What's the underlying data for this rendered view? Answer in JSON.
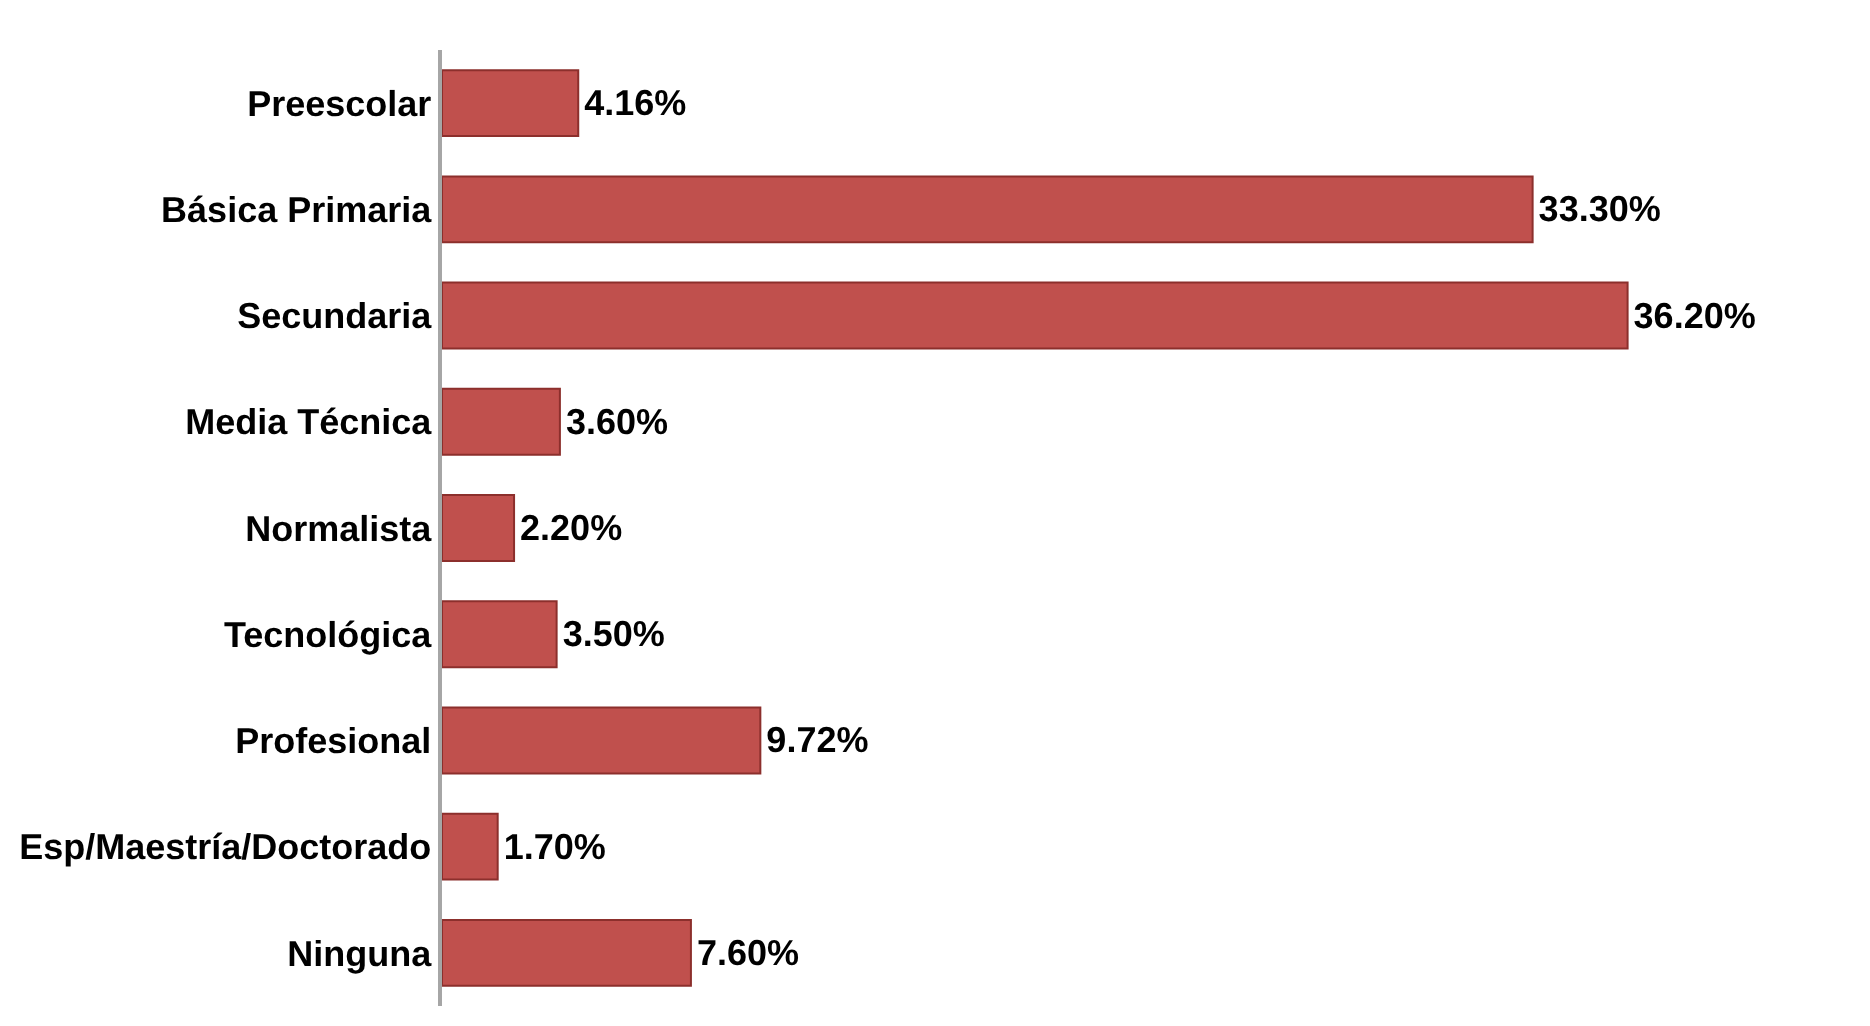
{
  "chart_data": {
    "type": "bar",
    "orientation": "horizontal",
    "categories": [
      "Preescolar",
      "Básica Primaria",
      "Secundaria",
      "Media Técnica",
      "Normalista",
      "Tecnológica",
      "Profesional",
      "Esp/Maestría/Doctorado",
      "Ninguna"
    ],
    "values": [
      4.16,
      33.3,
      36.2,
      3.6,
      2.2,
      3.5,
      9.72,
      1.7,
      7.6
    ],
    "value_labels": [
      "4.16%",
      "33.30%",
      "36.20%",
      "3.60%",
      "2.20%",
      "3.50%",
      "9.72%",
      "1.70%",
      "7.60%"
    ],
    "color": "#c0504d",
    "grid": false,
    "legend": false,
    "tick_labels": "y"
  }
}
